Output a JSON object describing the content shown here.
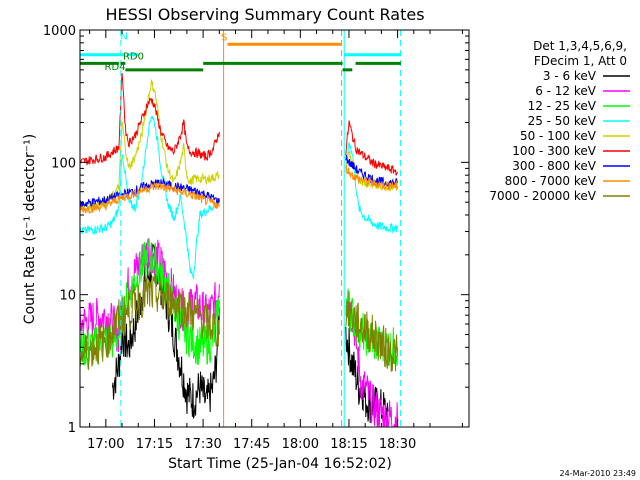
{
  "chart_data": {
    "type": "line",
    "title": "HESSI Observing Summary Count Rates",
    "xlabel": "Start Time (25-Jan-04 16:52:02)",
    "ylabel": "Count Rate (s⁻¹ detector⁻¹)",
    "yscale": "log",
    "xunit": "minutes after 16:52:02",
    "xlim": [
      0,
      120
    ],
    "ylim": [
      1,
      1000
    ],
    "x_ticks": [
      {
        "x": 7.97,
        "label": "17:00"
      },
      {
        "x": 22.97,
        "label": "17:15"
      },
      {
        "x": 37.97,
        "label": "17:30"
      },
      {
        "x": 52.97,
        "label": "17:45"
      },
      {
        "x": 67.97,
        "label": "18:00"
      },
      {
        "x": 82.97,
        "label": "18:15"
      },
      {
        "x": 97.97,
        "label": "18:30"
      }
    ],
    "y_ticks": [
      {
        "y": 1,
        "label": "1"
      },
      {
        "y": 10,
        "label": "10"
      },
      {
        "y": 100,
        "label": "100"
      },
      {
        "y": 1000,
        "label": "1000"
      }
    ],
    "grid": false,
    "legend_position": "right",
    "legend_header": [
      "Det 1,3,4,5,6,9,",
      "FDecim 1, Att 0"
    ],
    "footer_date": "24-Mar-2010 23:49",
    "series": [
      {
        "name": "3 - 6 keV",
        "color": "#000000",
        "x": [
          10,
          12,
          13,
          15,
          17,
          19,
          21,
          23,
          25,
          27,
          29,
          31,
          33,
          35,
          37,
          39,
          41,
          42,
          43,
          82,
          83,
          84,
          85,
          86,
          87,
          88,
          90,
          92,
          95
        ],
        "y": [
          2.0,
          3.0,
          5.0,
          4.0,
          6.0,
          10.0,
          14.0,
          18.0,
          12.0,
          8.0,
          5.0,
          3.0,
          1.8,
          1.6,
          2.0,
          1.5,
          2.0,
          3.0,
          8.0,
          5.0,
          4.0,
          3.0,
          2.5,
          2.0,
          2.0,
          1.6,
          1.5,
          1.4,
          1.3
        ]
      },
      {
        "name": "6 - 12 keV",
        "color": "#ff00ff",
        "x": [
          0,
          4,
          8,
          10,
          12,
          13,
          15,
          17,
          19,
          21,
          23,
          25,
          27,
          29,
          31,
          33,
          35,
          37,
          39,
          41,
          42,
          43,
          82,
          83,
          84,
          85,
          86,
          87,
          88,
          90,
          92,
          95,
          98
        ],
        "y": [
          6.0,
          6.5,
          7.0,
          6.0,
          5.0,
          8.0,
          12.0,
          15.0,
          18.0,
          22.0,
          20.0,
          17.0,
          13.0,
          10.0,
          8.0,
          7.0,
          9.0,
          8.0,
          7.0,
          8.0,
          9.0,
          12.0,
          10.0,
          8.0,
          7.0,
          5.0,
          3.0,
          2.0,
          2.0,
          1.5,
          1.3,
          1.2,
          1.1
        ]
      },
      {
        "name": "12 - 25 keV",
        "color": "#00ff00",
        "x": [
          0,
          4,
          8,
          10,
          12,
          13,
          15,
          17,
          19,
          21,
          23,
          25,
          27,
          29,
          31,
          33,
          35,
          37,
          39,
          41,
          42,
          43,
          82,
          83,
          84,
          85,
          86,
          88,
          90,
          92,
          95,
          98
        ],
        "y": [
          4.0,
          4.0,
          4.5,
          4.5,
          5.0,
          7.0,
          10.0,
          13.0,
          16.0,
          20.0,
          18.0,
          15.0,
          11.0,
          8.0,
          6.0,
          5.0,
          4.5,
          4.0,
          4.2,
          4.5,
          6.0,
          9.0,
          9.0,
          8.0,
          7.0,
          6.0,
          5.5,
          5.0,
          4.5,
          4.2,
          4.0,
          4.0
        ]
      },
      {
        "name": "25 - 50 keV",
        "color": "#00ffff",
        "x": [
          0,
          4,
          8,
          10,
          12,
          13,
          14,
          15,
          17,
          19,
          21,
          22,
          23,
          24,
          25,
          27,
          29,
          30,
          31,
          32,
          33,
          34,
          35,
          36,
          37,
          43,
          82,
          83,
          84,
          85,
          86,
          88,
          90,
          92,
          95,
          98
        ],
        "y": [
          30.0,
          31.0,
          32.0,
          35.0,
          45.0,
          120.0,
          80.0,
          50.0,
          45.0,
          70.0,
          170.0,
          230.0,
          200.0,
          140.0,
          90.0,
          50.0,
          38.0,
          45.0,
          55.0,
          38.0,
          25.0,
          15.0,
          14.0,
          25.0,
          40.0,
          50.0,
          80.0,
          140.0,
          120.0,
          70.0,
          45.0,
          38.0,
          35.0,
          33.0,
          32.0,
          32.0
        ]
      },
      {
        "name": "50 - 100 keV",
        "color": "#d0d000",
        "x": [
          0,
          4,
          8,
          10,
          12,
          13,
          14,
          15,
          17,
          19,
          21,
          22,
          23,
          24,
          25,
          27,
          29,
          31,
          32,
          33,
          34,
          35,
          37,
          40,
          43,
          82,
          83,
          84,
          85,
          86,
          88,
          90,
          92,
          95,
          98
        ],
        "y": [
          45.0,
          48.0,
          50.0,
          55.0,
          65.0,
          200.0,
          130.0,
          90.0,
          110.0,
          160.0,
          300.0,
          400.0,
          350.0,
          250.0,
          160.0,
          90.0,
          70.0,
          100.0,
          130.0,
          80.0,
          70.0,
          75.0,
          75.0,
          75.0,
          80.0,
          90.0,
          120.0,
          100.0,
          85.0,
          75.0,
          70.0,
          68.0,
          67.0,
          66.0,
          65.0
        ]
      },
      {
        "name": "100 - 300 keV",
        "color": "#ff0000",
        "x": [
          0,
          4,
          8,
          10,
          12,
          13,
          14,
          15,
          17,
          19,
          21,
          22,
          23,
          24,
          25,
          27,
          29,
          31,
          32,
          33,
          34,
          35,
          37,
          39,
          41,
          43,
          82,
          83,
          84,
          85,
          86,
          88,
          90,
          92,
          95,
          98
        ],
        "y": [
          100.0,
          105.0,
          110.0,
          120.0,
          130.0,
          500.0,
          180.0,
          140.0,
          160.0,
          210.0,
          280.0,
          300.0,
          270.0,
          210.0,
          170.0,
          130.0,
          120.0,
          160.0,
          200.0,
          130.0,
          120.0,
          120.0,
          115.0,
          110.0,
          125.0,
          170.0,
          120.0,
          200.0,
          160.0,
          130.0,
          120.0,
          110.0,
          100.0,
          95.0,
          90.0,
          85.0
        ]
      },
      {
        "name": "300 - 800 keV",
        "color": "#0000ff",
        "x": [
          0,
          4,
          8,
          10,
          12,
          14,
          16,
          18,
          20,
          22,
          24,
          26,
          28,
          30,
          32,
          34,
          36,
          38,
          40,
          42,
          43,
          82,
          83,
          84,
          85,
          86,
          88,
          90,
          92,
          95,
          98
        ],
        "y": [
          48.0,
          50.0,
          52.0,
          54.0,
          56.0,
          58.0,
          60.0,
          63.0,
          66.0,
          68.0,
          70.0,
          69.0,
          67.0,
          65.0,
          64.0,
          62.0,
          60.0,
          58.0,
          55.0,
          52.0,
          50.0,
          110.0,
          100.0,
          95.0,
          90.0,
          85.0,
          80.0,
          75.0,
          72.0,
          70.0,
          70.0
        ]
      },
      {
        "name": "800 - 7000 keV",
        "color": "#ff8c00",
        "x": [
          0,
          4,
          8,
          10,
          12,
          14,
          16,
          18,
          20,
          22,
          24,
          26,
          28,
          30,
          32,
          34,
          36,
          38,
          40,
          42,
          43,
          82,
          83,
          84,
          85,
          86,
          88,
          90,
          92,
          95,
          98
        ],
        "y": [
          44.0,
          45.0,
          47.0,
          50.0,
          53.0,
          55.0,
          57.0,
          60.0,
          63.0,
          65.0,
          66.0,
          65.0,
          63.0,
          61.0,
          59.0,
          57.0,
          55.0,
          52.0,
          50.0,
          48.0,
          46.0,
          90.0,
          85.0,
          80.0,
          77.0,
          75.0,
          72.0,
          70.0,
          68.0,
          67.0,
          66.0
        ]
      },
      {
        "name": "7000 - 20000 keV",
        "color": "#808000",
        "x": [
          0,
          4,
          8,
          10,
          12,
          14,
          16,
          18,
          20,
          22,
          24,
          26,
          28,
          30,
          32,
          34,
          36,
          38,
          40,
          42,
          43,
          82,
          84,
          86,
          88,
          90,
          92,
          94,
          96,
          98
        ],
        "y": [
          3.5,
          4.0,
          4.5,
          5.5,
          6.5,
          7.0,
          8.0,
          9.0,
          10.0,
          10.0,
          10.0,
          9.5,
          9.0,
          8.5,
          8.0,
          7.5,
          7.0,
          6.5,
          6.0,
          5.5,
          5.0,
          8.0,
          7.0,
          6.0,
          5.5,
          5.0,
          4.5,
          4.0,
          3.7,
          3.5
        ]
      }
    ],
    "annotations": {
      "flag_labels": [
        {
          "label": "N",
          "x": 13.6,
          "y": 850
        },
        {
          "label": "RD0",
          "x": 16.5,
          "y": 600
        },
        {
          "label": "RD4",
          "x": 10.8,
          "y": 500
        },
        {
          "label": "S",
          "x": 44.5,
          "y": 830
        }
      ],
      "cyan_bar": {
        "color": "#00ffff",
        "y": 650,
        "segments": [
          [
            0,
            13.5
          ],
          [
            14.5,
            18
          ],
          [
            81.5,
            99
          ]
        ]
      },
      "green_bar": {
        "color": "#008000",
        "segments": [
          {
            "y": 560,
            "x": [
              0,
              12
            ]
          },
          {
            "y": 560,
            "x": [
              12.5,
              14
            ]
          },
          {
            "y": 500,
            "x": [
              14,
              38
            ]
          },
          {
            "y": 560,
            "x": [
              38,
              81
            ]
          },
          {
            "y": 500,
            "x": [
              81,
              84
            ]
          },
          {
            "y": 560,
            "x": [
              85,
              99
            ]
          }
        ]
      },
      "orange_bar": {
        "color": "#ff8c00",
        "y": 780,
        "segments": [
          [
            45.5,
            80.5
          ]
        ]
      },
      "vlines": [
        {
          "x": 12.6,
          "color": "#00ffff",
          "style": "dashed"
        },
        {
          "x": 44.3,
          "color": "#ff8c00",
          "style": "solid"
        },
        {
          "x": 80.7,
          "color": "#ff8c00",
          "style": "dashed"
        },
        {
          "x": 81.5,
          "color": "#00ffff",
          "style": "solid"
        },
        {
          "x": 98.9,
          "color": "#00ffff",
          "style": "dashed"
        }
      ]
    }
  }
}
